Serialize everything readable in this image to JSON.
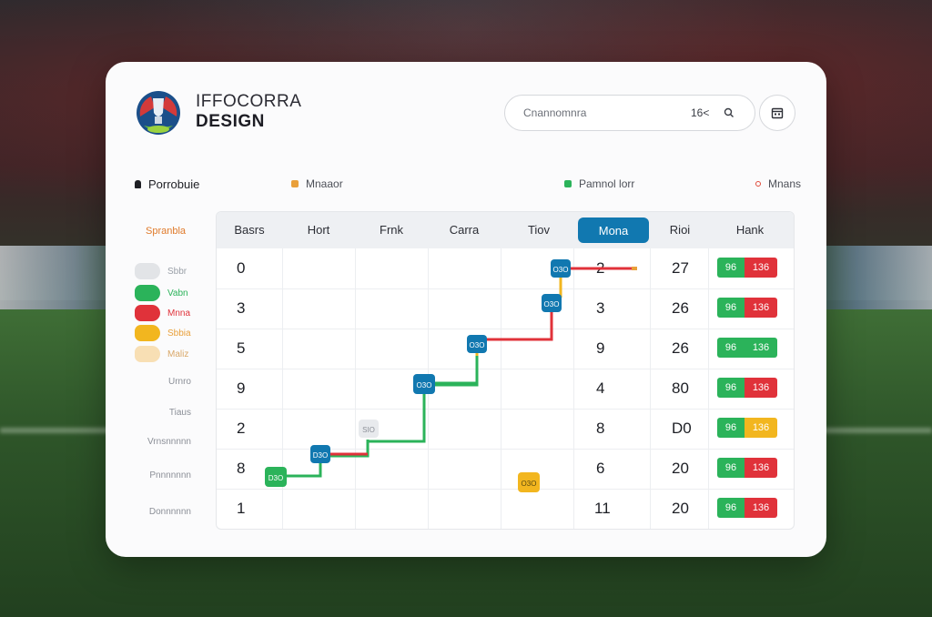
{
  "brand": {
    "line1": "IFFOCORRA",
    "line2": "DESIGN"
  },
  "search": {
    "placeholder": "Cnannomnra",
    "shortcut": "16<"
  },
  "legend": {
    "title": "Porrobuie",
    "items": [
      {
        "label": "Mnaaor",
        "color": "#e9a03a"
      },
      {
        "label": "Pamnol lorr",
        "color": "#2bb35a"
      },
      {
        "label": "Mnans",
        "color": "#e04a3a"
      }
    ]
  },
  "sidebar": {
    "header": "Spranbla",
    "teams": [
      {
        "label": "Sbbr",
        "color": "#e2e4e7",
        "text_color": "#9aa0a8"
      },
      {
        "label": "Vabn",
        "color": "#2bb35a",
        "text_color": "#2bb35a"
      },
      {
        "label": "Mnna",
        "color": "#e0323a",
        "text_color": "#e0323a"
      },
      {
        "label": "Sbbia",
        "color": "#f2b61f",
        "text_color": "#e9a03a"
      },
      {
        "label": "Maliz",
        "color": "#f8dfb4",
        "text_color": "#d9a868"
      }
    ],
    "rows": [
      "Urnro",
      "Tiaus",
      "Vrnsnnnnn",
      "Pnnnnnnn",
      "Donnnnnn"
    ]
  },
  "table": {
    "headers": [
      "Basrs",
      "Hort",
      "Frnk",
      "Carra",
      "Tiov",
      "Mona",
      "Rioi",
      "Hank"
    ],
    "active_header": "Mona",
    "col1": [
      "0",
      "3",
      "5",
      "9",
      "2",
      "8",
      "1"
    ],
    "col6": [
      "2",
      "3",
      "9",
      "4",
      "8",
      "6",
      "11"
    ],
    "col7": [
      "27",
      "26",
      "26",
      "80",
      "D0",
      "20",
      "20"
    ],
    "pills": [
      {
        "left": "96",
        "right": "136",
        "right_color": "#e0323a"
      },
      {
        "left": "96",
        "right": "136",
        "right_color": "#e0323a"
      },
      {
        "left": "96",
        "right": "136",
        "right_color": "#2bb35a"
      },
      {
        "left": "96",
        "right": "136",
        "right_color": "#e0323a"
      },
      {
        "left": "96",
        "right": "136",
        "right_color": "#f2b61f"
      },
      {
        "left": "96",
        "right": "136",
        "right_color": "#e0323a"
      },
      {
        "left": "96",
        "right": "136",
        "right_color": "#e0323a"
      }
    ],
    "nodes": [
      {
        "label": "D3O",
        "color": "#2bb35a"
      },
      {
        "label": "D3O",
        "color": "#1178b0"
      },
      {
        "label": "SIO",
        "color": "#e8eaed"
      },
      {
        "label": "O3O",
        "color": "#1178b0"
      },
      {
        "label": "O3O",
        "color": "#1178b0"
      },
      {
        "label": "O3O",
        "color": "#1178b0"
      },
      {
        "label": "O3O",
        "color": "#1178b0"
      },
      {
        "label": "O3O",
        "color": "#f2b61f"
      }
    ]
  },
  "colors": {
    "accent": "#1178b0",
    "green": "#2bb35a",
    "red": "#e0323a",
    "yellow": "#f2b61f"
  }
}
